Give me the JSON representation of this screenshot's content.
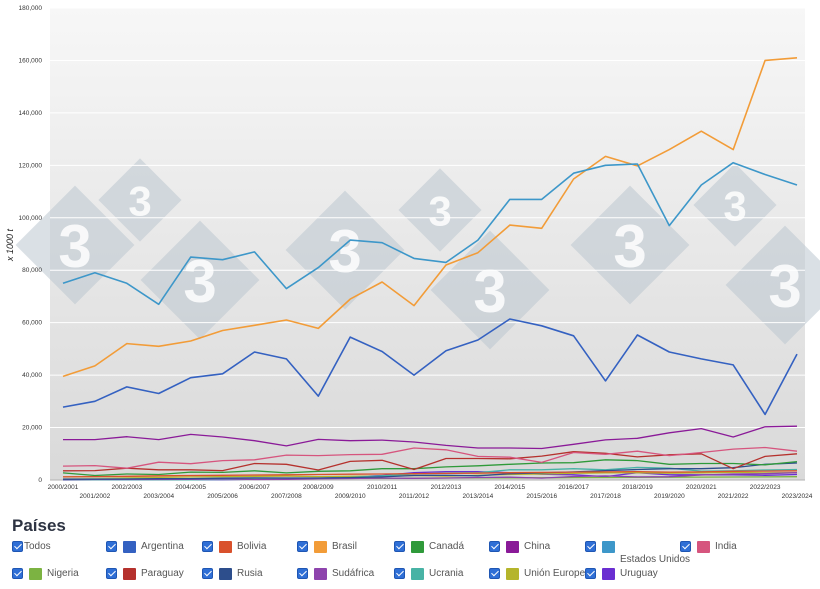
{
  "chart_data": {
    "type": "line",
    "ylabel": "x 1000 t",
    "ylim": [
      0,
      180000
    ],
    "yticks": [
      "0",
      "20,000",
      "40,000",
      "60,000",
      "80,000",
      "100,000",
      "120,000",
      "140,000",
      "160,000",
      "180,000"
    ],
    "grid": true,
    "categories": [
      "2000/2001",
      "2001/2002",
      "2002/2003",
      "2003/2004",
      "2004/2005",
      "2005/2006",
      "2006/2007",
      "2007/2008",
      "2008/2009",
      "2009/2010",
      "2010/2011",
      "2011/2012",
      "2012/2013",
      "2013/2014",
      "2014/2015",
      "2015/2016",
      "2016/2017",
      "2017/2018",
      "2018/2019",
      "2019/2020",
      "2020/2021",
      "2021/2022",
      "2022/2023",
      "2023/2024"
    ],
    "series": [
      {
        "name": "Estados Unidos",
        "color": "#3d97c9",
        "values": [
          75000,
          79000,
          75000,
          67000,
          85000,
          84000,
          87000,
          73000,
          81000,
          91500,
          90500,
          84500,
          83000,
          91500,
          107000,
          107000,
          117000,
          120000,
          120500,
          97000,
          112500,
          121000,
          116500,
          112500
        ]
      },
      {
        "name": "Brasil",
        "color": "#f29c38",
        "values": [
          39500,
          43500,
          52000,
          51000,
          53000,
          57000,
          59000,
          61000,
          57800,
          69000,
          75500,
          66500,
          82000,
          86700,
          97200,
          96000,
          114800,
          123400,
          119800,
          126000,
          133000,
          126000,
          160000,
          161000
        ]
      },
      {
        "name": "Argentina",
        "color": "#3461c1",
        "values": [
          27800,
          30000,
          35500,
          33000,
          39000,
          40500,
          48800,
          46200,
          32000,
          54500,
          49000,
          40000,
          49300,
          53400,
          61400,
          58800,
          55000,
          37800,
          55300,
          48800,
          46200,
          43900,
          25000,
          48000
        ]
      },
      {
        "name": "China",
        "color": "#8a1a98",
        "values": [
          15400,
          15400,
          16500,
          15400,
          17400,
          16400,
          15000,
          13000,
          15500,
          15000,
          15200,
          14500,
          13200,
          12200,
          12200,
          12000,
          13600,
          15300,
          15900,
          18000,
          19600,
          16400,
          20300,
          20500
        ]
      },
      {
        "name": "India",
        "color": "#d6557e",
        "values": [
          5300,
          5500,
          4500,
          6800,
          6200,
          7400,
          7700,
          9500,
          9300,
          9700,
          9800,
          12200,
          11500,
          9000,
          8700,
          6700,
          10500,
          9800,
          11000,
          9300,
          10500,
          11800,
          12400,
          11000
        ]
      },
      {
        "name": "Paraguay",
        "color": "#b5312d",
        "values": [
          3500,
          3600,
          4500,
          3900,
          3900,
          3600,
          6300,
          6000,
          3800,
          7100,
          7500,
          4000,
          8200,
          8200,
          8100,
          9100,
          10800,
          10200,
          8800,
          9600,
          10000,
          4300,
          9000,
          10000
        ]
      },
      {
        "name": "Canadá",
        "color": "#2f9a3a",
        "values": [
          2700,
          1700,
          2300,
          2100,
          3000,
          2900,
          3500,
          2700,
          3300,
          3500,
          4300,
          4300,
          5000,
          5400,
          6000,
          6500,
          6600,
          7700,
          7400,
          6000,
          6300,
          6300,
          5800,
          7000
        ]
      },
      {
        "name": "Bolivia",
        "color": "#d9512c",
        "values": [
          1200,
          1300,
          1400,
          1600,
          1700,
          1800,
          1900,
          2000,
          2100,
          2200,
          2300,
          2400,
          2500,
          2600,
          2800,
          2900,
          3000,
          3100,
          3200,
          3000,
          3100,
          3300,
          3400,
          3500
        ]
      },
      {
        "name": "Rusia",
        "color": "#2d4e8c",
        "values": [
          300,
          350,
          400,
          500,
          550,
          700,
          800,
          750,
          750,
          900,
          1200,
          1700,
          1800,
          1600,
          2400,
          2700,
          3100,
          3600,
          4000,
          4300,
          4300,
          4700,
          6000,
          6500
        ]
      },
      {
        "name": "Sudáfrica",
        "color": "#8e44ad",
        "values": [
          150,
          200,
          220,
          180,
          270,
          420,
          200,
          280,
          500,
          560,
          710,
          650,
          780,
          940,
          1070,
          740,
          1320,
          1550,
          1170,
          1250,
          1900,
          2300,
          2400,
          2800
        ]
      },
      {
        "name": "Ucrania",
        "color": "#48b3a5",
        "values": [
          70,
          80,
          120,
          70,
          60,
          200,
          250,
          400,
          700,
          1000,
          1600,
          2300,
          2600,
          2800,
          3900,
          3900,
          4300,
          3900,
          4800,
          4500,
          3400,
          3500,
          3800,
          4000
        ]
      },
      {
        "name": "Nigeria",
        "color": "#7cb342",
        "values": [
          400,
          430,
          450,
          480,
          500,
          520,
          550,
          600,
          620,
          650,
          660,
          700,
          750,
          800,
          830,
          850,
          900,
          950,
          1000,
          1050,
          1100,
          1150,
          1200,
          1250
        ]
      },
      {
        "name": "Unión Europea",
        "color": "#b5b52b",
        "values": [
          1200,
          1300,
          1100,
          1000,
          1200,
          1300,
          1400,
          1500,
          1300,
          1400,
          1500,
          1700,
          1500,
          1800,
          2100,
          2300,
          2500,
          2700,
          2800,
          2600,
          2700,
          2900,
          2700,
          2800
        ]
      },
      {
        "name": "Uruguay",
        "color": "#6a2ed1",
        "values": [
          10,
          20,
          30,
          50,
          80,
          120,
          300,
          400,
          600,
          1200,
          1700,
          2800,
          3200,
          3200,
          2800,
          2200,
          2000,
          1300,
          2800,
          2000,
          2000,
          2000,
          1800,
          2100
        ]
      }
    ]
  },
  "legend": {
    "title": "Países",
    "items": [
      {
        "label": "Todos",
        "color": ""
      },
      {
        "label": "Argentina",
        "color": "#3461c1"
      },
      {
        "label": "Bolivia",
        "color": "#d9512c"
      },
      {
        "label": "Brasil",
        "color": "#f29c38"
      },
      {
        "label": "Canadá",
        "color": "#2f9a3a"
      },
      {
        "label": "China",
        "color": "#8a1a98"
      },
      {
        "label": "Estados Unidos",
        "color": "#3d97c9"
      },
      {
        "label": "India",
        "color": "#d6557e"
      },
      {
        "label": "Nigeria",
        "color": "#7cb342"
      },
      {
        "label": "Paraguay",
        "color": "#b5312d"
      },
      {
        "label": "Rusia",
        "color": "#2d4e8c"
      },
      {
        "label": "Sudáfrica",
        "color": "#8e44ad"
      },
      {
        "label": "Ucrania",
        "color": "#48b3a5"
      },
      {
        "label": "Unión Europea",
        "color": "#b5b52b"
      },
      {
        "label": "Uruguay",
        "color": "#6a2ed1"
      }
    ]
  }
}
